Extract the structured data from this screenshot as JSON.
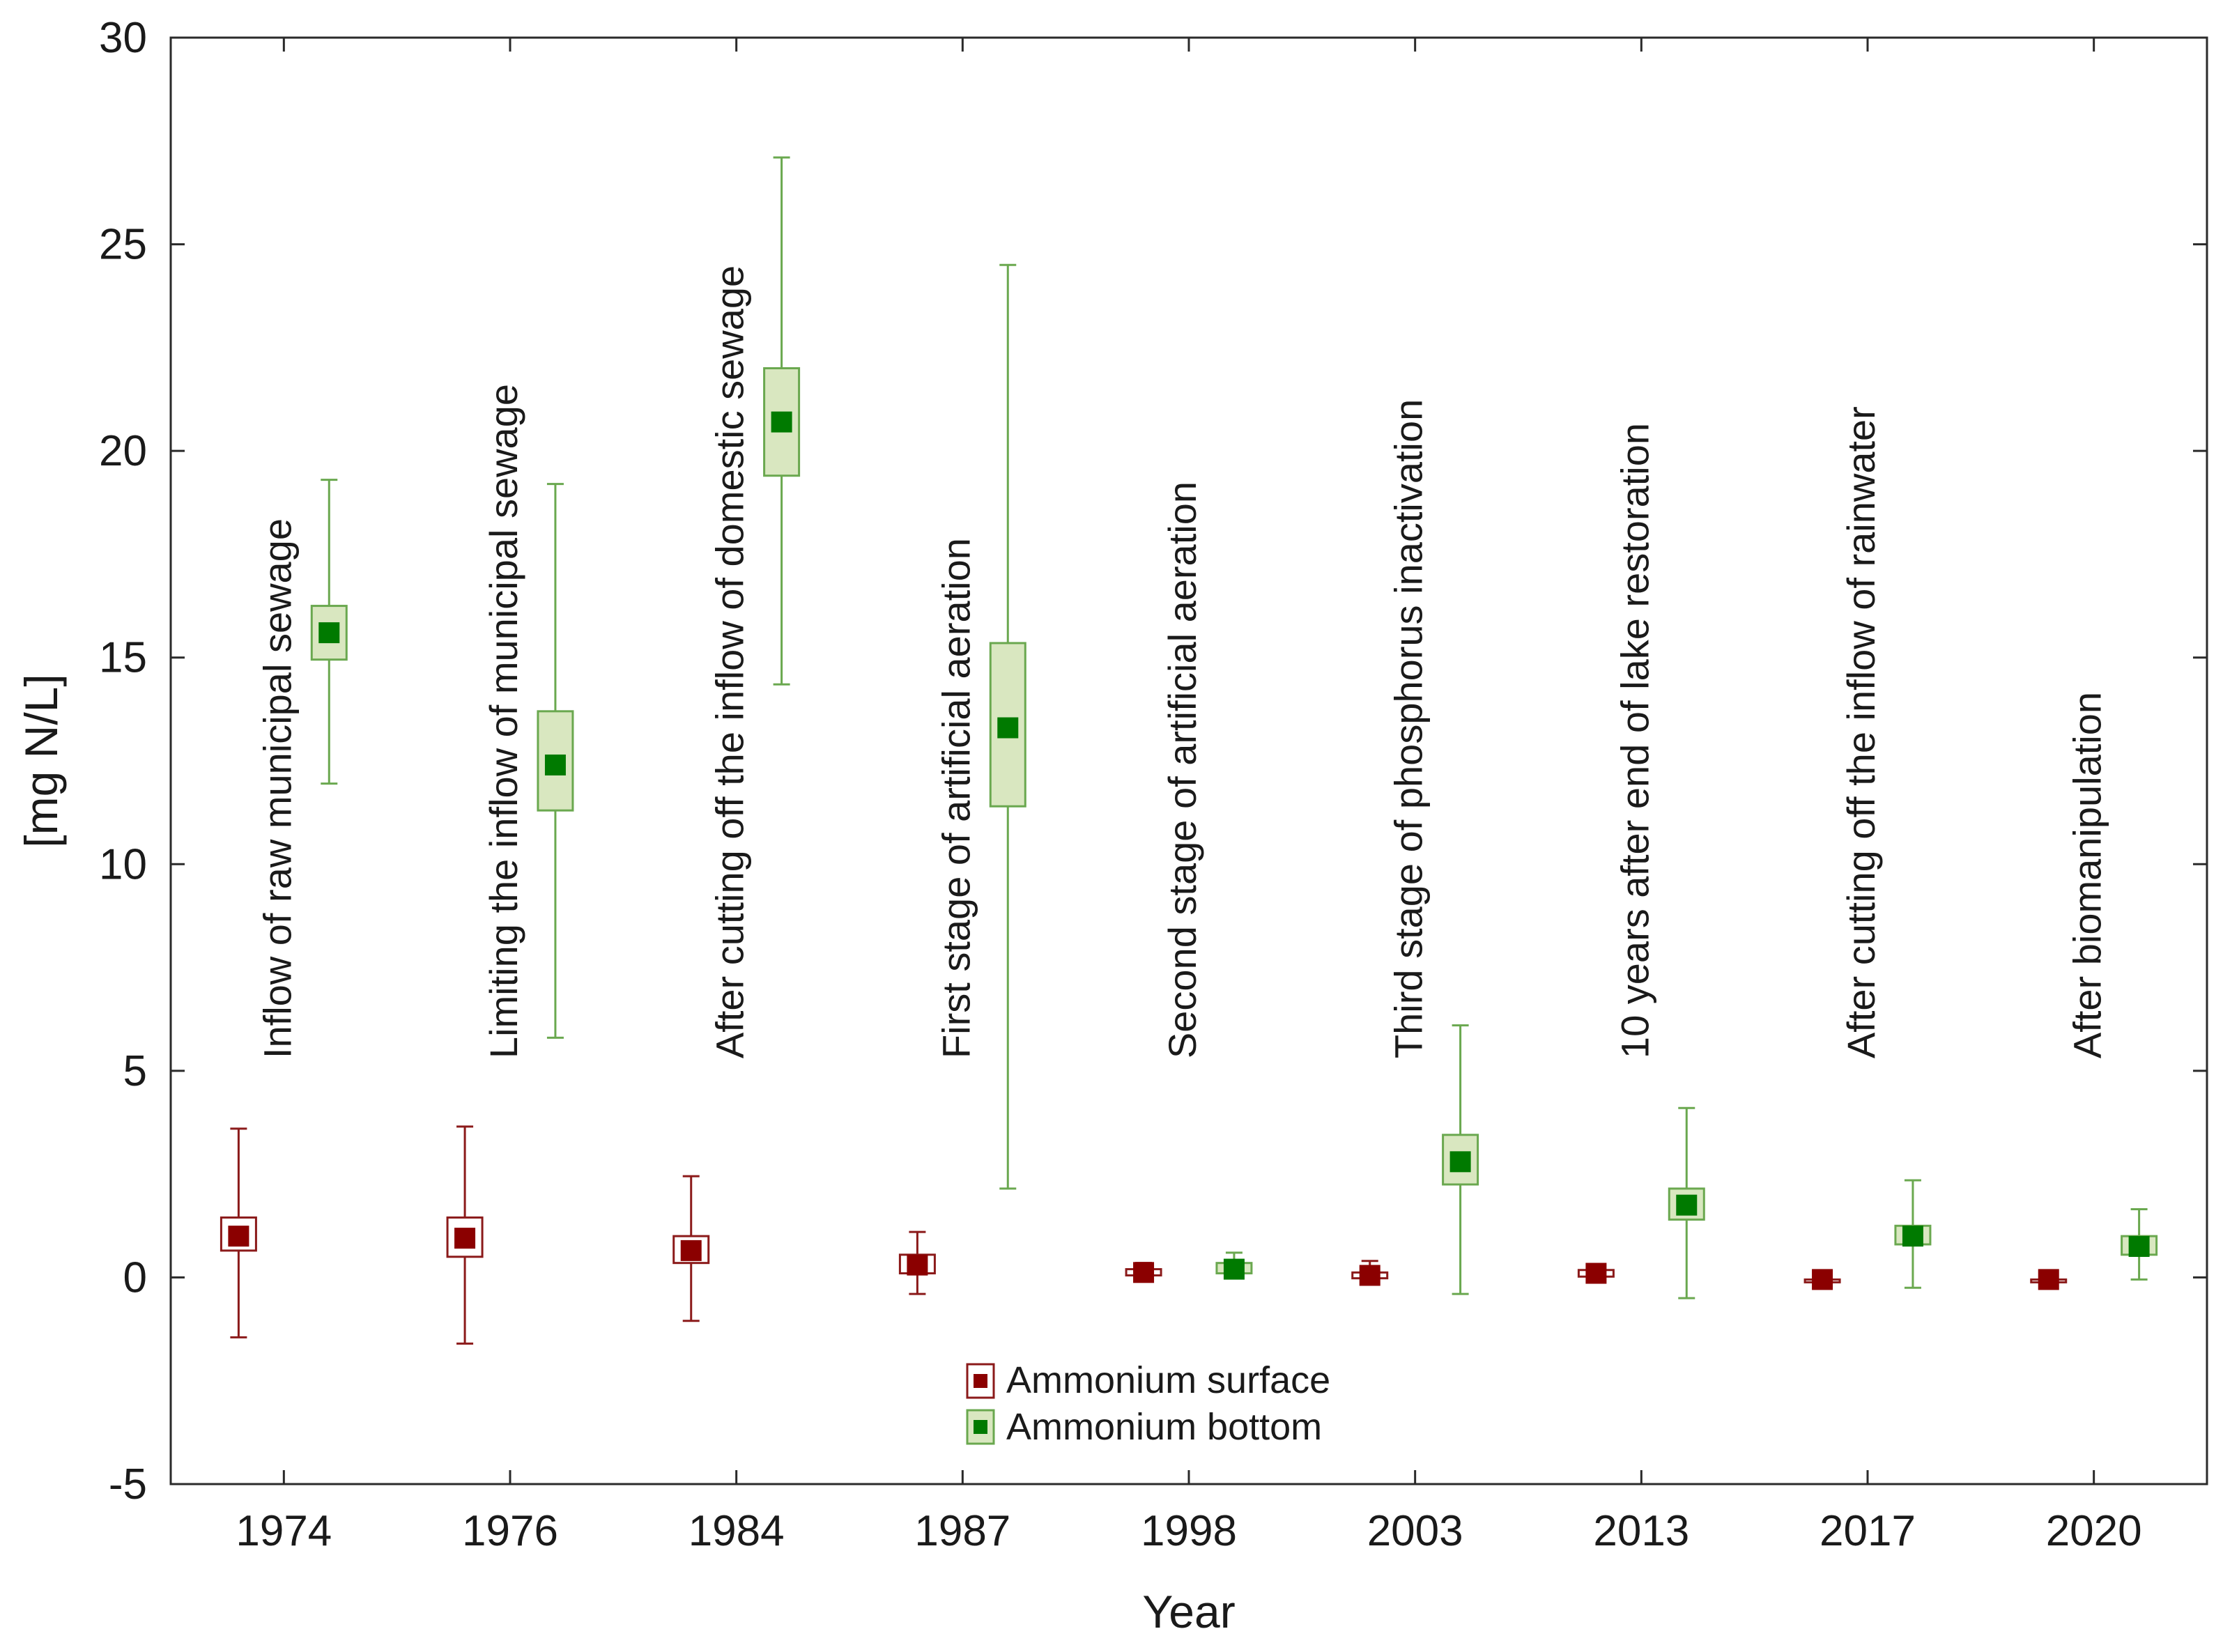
{
  "chart_data": {
    "type": "box",
    "title": "",
    "xlabel": "Year",
    "ylabel": "[mg N/L]",
    "ylim": [
      -5,
      30
    ],
    "yticks": [
      -5,
      0,
      5,
      10,
      15,
      20,
      25,
      30
    ],
    "categories": [
      "1974",
      "1976",
      "1984",
      "1987",
      "1998",
      "2003",
      "2013",
      "2017",
      "2020"
    ],
    "annotations": [
      "Inflow of raw municipal sewage",
      "Limiting the inflow of municipal sewage",
      "After cutting off the inflow of domestic sewage",
      "First stage of artificial aeration",
      "Second stage of artificial aeration",
      "Third stage of phosphorus inactivation",
      "10 years after end of lake restoration",
      "After cutting off the inflow of rainwater",
      "After biomanipulation"
    ],
    "series": [
      {
        "name": "Ammonium surface",
        "color": "#8b0000",
        "box_fill": "#ffffff",
        "box_edge": "#8b1a1a",
        "mean": [
          1.0,
          0.95,
          0.65,
          0.3,
          0.12,
          0.05,
          0.1,
          -0.05,
          -0.05
        ],
        "box_low": [
          0.65,
          0.5,
          0.35,
          0.1,
          0.05,
          -0.02,
          0.02,
          -0.05,
          -0.05
        ],
        "box_high": [
          1.45,
          1.45,
          1.0,
          0.55,
          0.2,
          0.12,
          0.18,
          -0.05,
          -0.05
        ],
        "whisker_low": [
          -1.45,
          -1.6,
          -1.05,
          -0.4,
          0.0,
          -0.1,
          -0.02,
          -0.05,
          -0.05
        ],
        "whisker_high": [
          3.6,
          3.65,
          2.45,
          1.1,
          0.35,
          0.4,
          0.3,
          -0.05,
          -0.05
        ]
      },
      {
        "name": "Ammonium bottom",
        "color": "#007a00",
        "box_fill": "#d9e7c0",
        "box_edge": "#6aa84f",
        "mean": [
          15.6,
          12.4,
          20.7,
          13.3,
          0.2,
          2.8,
          1.75,
          1.0,
          0.75
        ],
        "box_low": [
          14.95,
          11.3,
          19.4,
          11.4,
          0.1,
          2.25,
          1.4,
          0.8,
          0.55
        ],
        "box_high": [
          16.25,
          13.7,
          22.0,
          15.35,
          0.35,
          3.45,
          2.15,
          1.25,
          1.0
        ],
        "whisker_low": [
          11.95,
          5.8,
          14.35,
          2.15,
          0.0,
          -0.4,
          -0.5,
          -0.25,
          -0.05
        ],
        "whisker_high": [
          19.3,
          19.2,
          27.1,
          24.5,
          0.6,
          6.1,
          4.1,
          2.35,
          1.65
        ]
      }
    ]
  }
}
